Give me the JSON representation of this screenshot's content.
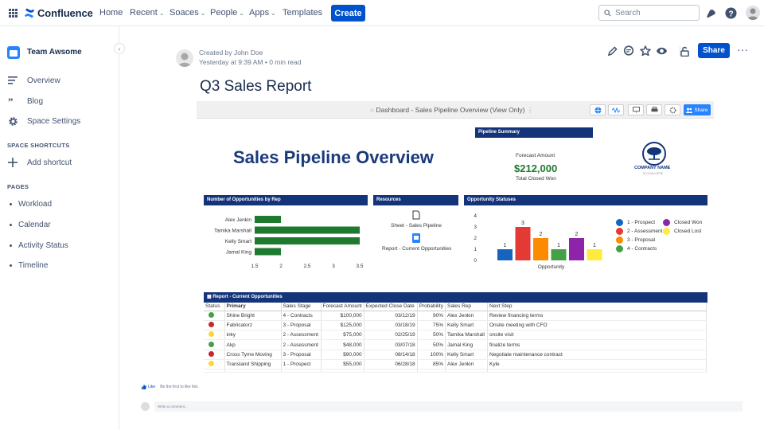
{
  "nav": {
    "logo": "Confluence",
    "items": [
      {
        "label": "Home",
        "dropdown": false
      },
      {
        "label": "Recent",
        "dropdown": true
      },
      {
        "label": "Soaces",
        "dropdown": true
      },
      {
        "label": "People",
        "dropdown": true
      },
      {
        "label": "Apps",
        "dropdown": true
      },
      {
        "label": "Templates",
        "dropdown": false
      }
    ],
    "create_label": "Create",
    "search_placeholder": "Search",
    "accent": "#0052cc"
  },
  "sidebar": {
    "space_name": "Team Awsome",
    "links": [
      {
        "label": "Overview",
        "icon": "overview-icon"
      },
      {
        "label": "Blog",
        "icon": "quote-icon"
      },
      {
        "label": "Space Settings",
        "icon": "gear-icon"
      }
    ],
    "shortcuts_heading": "SPACE SHORTCUTS",
    "add_shortcut": "Add shortcut",
    "pages_heading": "PAGES",
    "pages": [
      "Workload",
      "Calendar",
      "Activity Status",
      "Timeline"
    ]
  },
  "page": {
    "author_line": "Created by John Doe",
    "time_line": "Yesterday at 9:39 AM",
    "read_time": "0 min read",
    "share_label": "Share",
    "title": "Q3 Sales Report"
  },
  "dashboard": {
    "title": "Dashboard - Sales Pipeline Overview (View Only)",
    "share_label": "Share",
    "big_title": "Sales Pipeline Overview",
    "pipeline_summary": {
      "heading": "Pipeline Summary",
      "forecast_label": "Forecast Amount",
      "forecast_value": "$212,000",
      "forecast_sub": "Total Closed Won"
    },
    "company": {
      "name": "COMPANY NAME",
      "tagline": "SLOGAN HERE"
    },
    "resources": {
      "heading": "Resources",
      "items": [
        {
          "label": "Sheet - Sales Pipeline",
          "icon": "sheet-icon"
        },
        {
          "label": "Report - Current Opportunities",
          "icon": "report-icon"
        }
      ]
    },
    "statuses_legend": [
      {
        "label": "1 - Prospect",
        "color": "#1565c0"
      },
      {
        "label": "2 - Assessment",
        "color": "#e53935"
      },
      {
        "label": "3 - Proposal",
        "color": "#fb8c00"
      },
      {
        "label": "4 - Contracts",
        "color": "#43a047"
      },
      {
        "label": "Closed Won",
        "color": "#8e24aa"
      },
      {
        "label": "Closed Lost",
        "color": "#ffeb3b"
      }
    ],
    "report": {
      "heading": "Report - Current Opportunities",
      "columns": [
        "Status",
        "Primary",
        "Sales Stage",
        "Forecast Amount",
        "Expected Close Date",
        "Probability",
        "Sales Rep",
        "Next Step"
      ],
      "rows": [
        {
          "status_color": "#43a047",
          "primary": "Shine Bright",
          "stage": "4 - Contracts",
          "amount": "$100,000",
          "close": "03/12/19",
          "prob": "90%",
          "rep": "Alex Jenkin",
          "next": "Review financing terms"
        },
        {
          "status_color": "#c62828",
          "primary": "Fabricatorz",
          "stage": "3 - Proposal",
          "amount": "$125,000",
          "close": "03/18/19",
          "prob": "75%",
          "rep": "Kelly Smart",
          "next": "Onsite meeting with CFO"
        },
        {
          "status_color": "#fdd835",
          "primary": "inky",
          "stage": "2 - Assessment",
          "amount": "$75,000",
          "close": "02/25/19",
          "prob": "50%",
          "rep": "Tamika Marshall",
          "next": "onsite visit"
        },
        {
          "status_color": "#43a047",
          "primary": "Akp",
          "stage": "2 - Assessment",
          "amount": "$48,000",
          "close": "03/07/18",
          "prob": "50%",
          "rep": "Jamal King",
          "next": "finalize terms"
        },
        {
          "status_color": "#c62828",
          "primary": "Cross Tyme Moving",
          "stage": "3 - Proposal",
          "amount": "$90,000",
          "close": "08/14/18",
          "prob": "100%",
          "rep": "Kelly Smart",
          "next": "Negotiate maintenance contract"
        },
        {
          "status_color": "#fdd835",
          "primary": "Transland Shipping",
          "stage": "1 - Prospect",
          "amount": "$55,000",
          "close": "06/28/18",
          "prob": "85%",
          "rep": "Alex Jenkin",
          "next": "Kyle"
        }
      ]
    }
  },
  "chart_data": [
    {
      "type": "bar",
      "orientation": "horizontal",
      "title": "Number of Opportunities by Rep",
      "categories": [
        "Alex Jenkin",
        "Tamika Marshall",
        "Kelly Smart",
        "Jamal King"
      ],
      "values": [
        2,
        3.5,
        3.5,
        2
      ],
      "xlim": [
        1.5,
        3.5
      ],
      "xticks": [
        "1.5",
        "2",
        "2.5",
        "3",
        "3.5"
      ],
      "color": "#1e7a2e"
    },
    {
      "type": "bar",
      "title": "Opportunity Statuses",
      "xlabel": "Opportunity",
      "ylim": [
        0,
        4
      ],
      "yticks": [
        "0",
        "1",
        "2",
        "3",
        "4"
      ],
      "categories": [
        "1 - Prospect",
        "2 - Assessment",
        "3 - Proposal",
        "4 - Contracts",
        "Closed Won",
        "Closed Lost"
      ],
      "values": [
        1,
        3,
        2,
        1,
        2,
        1
      ],
      "colors": [
        "#1565c0",
        "#e53935",
        "#fb8c00",
        "#43a047",
        "#8e24aa",
        "#ffeb3b"
      ]
    }
  ],
  "footer": {
    "like_label": "Like",
    "like_text": "Be the first to like this",
    "comment_placeholder": "Write a comment..."
  }
}
